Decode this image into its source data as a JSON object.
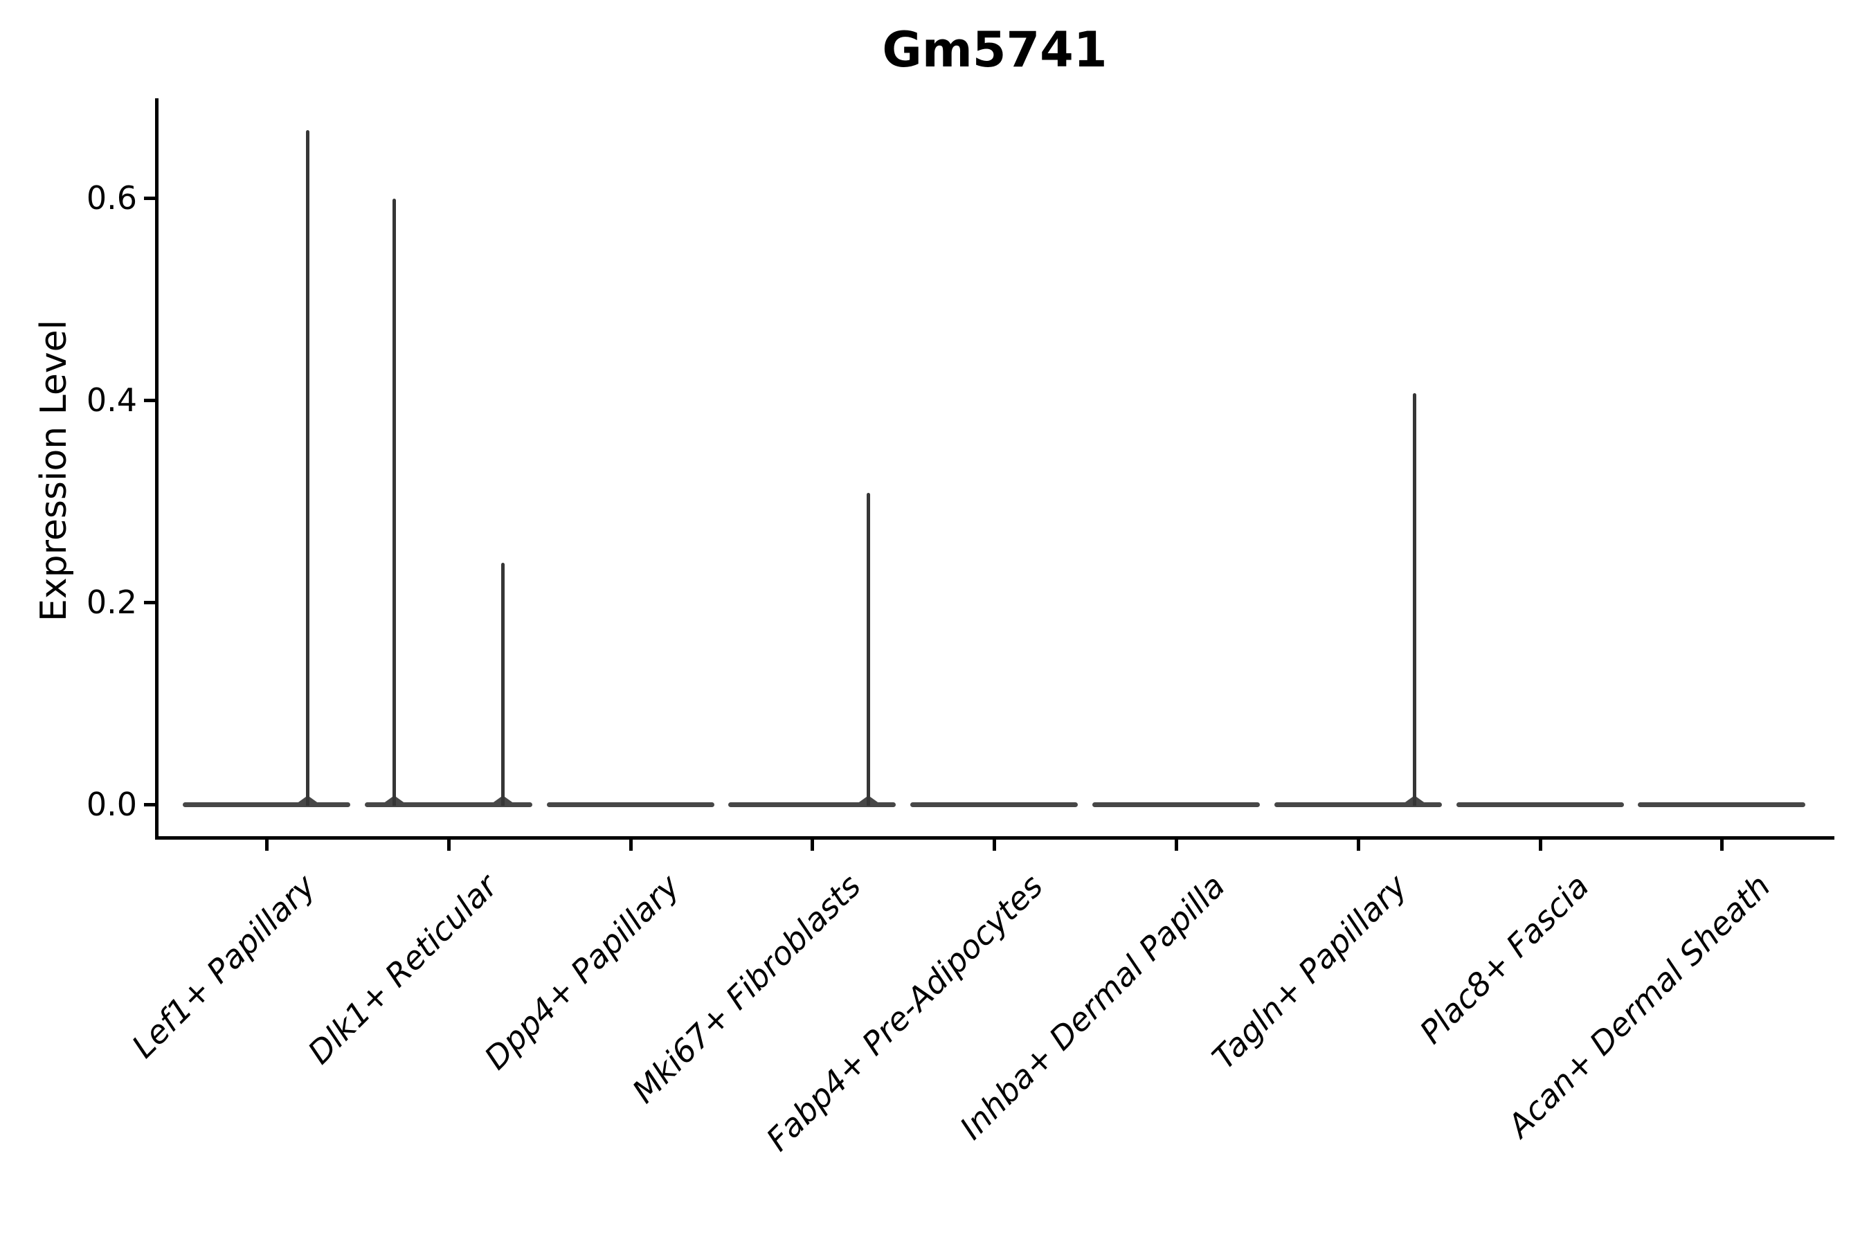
{
  "title": "Gm5741",
  "y_axis": {
    "label": "Expression Level",
    "tick_labels": [
      "0.0",
      "0.2",
      "0.4",
      "0.6"
    ],
    "tick_values": [
      0.0,
      0.2,
      0.4,
      0.6
    ]
  },
  "colors": {
    "axis": "#000000",
    "text": "#000000",
    "violin_baseline": "#474747",
    "violin_spike": "#363636"
  },
  "chart_data": {
    "type": "violin",
    "title": "Gm5741",
    "xlabel": "",
    "ylabel": "Expression Level",
    "ylim": [
      -0.033,
      0.7
    ],
    "y_ticks": [
      0.0,
      0.2,
      0.4,
      0.6
    ],
    "grid": false,
    "legend": "none",
    "x_tick_rotation_deg": 45,
    "categories": [
      "Lef1+ Papillary",
      "Dlk1+ Reticular",
      "Dpp4+ Papillary",
      "Mki67+ Fibroblasts",
      "Fabp4+ Pre-Adipocytes",
      "Inhba+ Dermal Papilla",
      "Tagln+ Papillary",
      "Plac8+ Fascia",
      "Acan+ Dermal Sheath"
    ],
    "series": [
      {
        "name": "Lef1+ Papillary",
        "bulk_at": 0.0,
        "max_expression": 0.67,
        "spikes": [
          {
            "value": 0.667,
            "offset_frac": 0.228
          }
        ]
      },
      {
        "name": "Dlk1+ Reticular",
        "bulk_at": 0.0,
        "max_expression": 0.6,
        "spikes": [
          {
            "value": 0.599,
            "offset_frac": -0.297
          },
          {
            "value": 0.239,
            "offset_frac": 0.301
          }
        ]
      },
      {
        "name": "Dpp4+ Papillary",
        "bulk_at": 0.0,
        "max_expression": 0.0,
        "spikes": []
      },
      {
        "name": "Mki67+ Fibroblasts",
        "bulk_at": 0.0,
        "max_expression": 0.31,
        "spikes": [
          {
            "value": 0.308,
            "offset_frac": 0.308
          }
        ]
      },
      {
        "name": "Fabp4+ Pre-Adipocytes",
        "bulk_at": 0.0,
        "max_expression": 0.0,
        "spikes": []
      },
      {
        "name": "Inhba+ Dermal Papilla",
        "bulk_at": 0.0,
        "max_expression": 0.0,
        "spikes": []
      },
      {
        "name": "Tagln+ Papillary",
        "bulk_at": 0.0,
        "max_expression": 0.41,
        "spikes": [
          {
            "value": 0.407,
            "offset_frac": 0.312
          }
        ]
      },
      {
        "name": "Plac8+ Fascia",
        "bulk_at": 0.0,
        "max_expression": 0.0,
        "spikes": []
      },
      {
        "name": "Acan+ Dermal Sheath",
        "bulk_at": 0.0,
        "max_expression": 0.0,
        "spikes": []
      }
    ]
  }
}
